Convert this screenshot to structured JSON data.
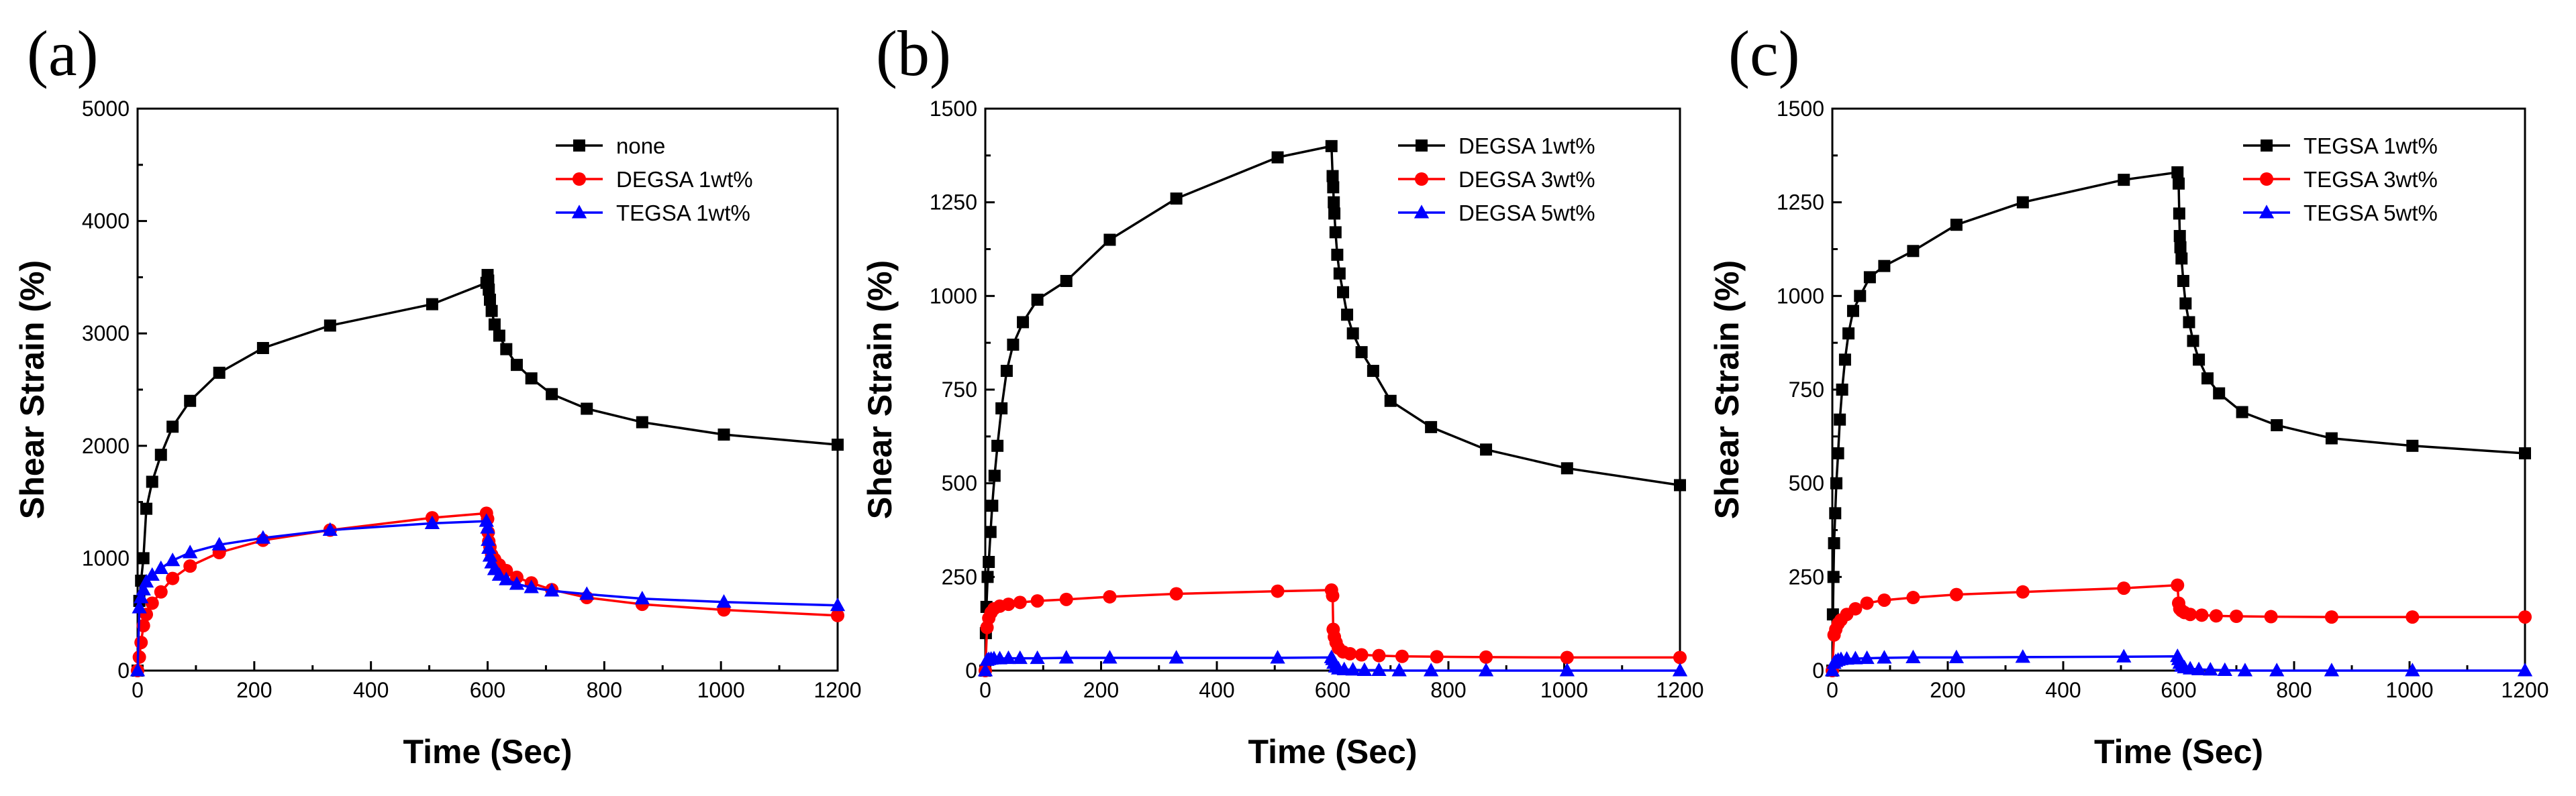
{
  "chart_data": [
    {
      "type": "line",
      "panel_label": "(a)",
      "xlabel": "Time (Sec)",
      "ylabel": "Shear Strain (%)",
      "xlim": [
        0,
        1200
      ],
      "ylim": [
        0,
        5000
      ],
      "xticks": [
        0,
        200,
        400,
        600,
        800,
        1000,
        1200
      ],
      "yticks": [
        0,
        1000,
        2000,
        3000,
        4000,
        5000
      ],
      "legend_position": "top-right",
      "series": [
        {
          "name": "none",
          "color": "#000000",
          "marker": "square",
          "x": [
            0,
            3,
            6,
            10,
            15,
            25,
            40,
            60,
            90,
            140,
            215,
            330,
            505,
            598,
            600,
            601,
            602,
            604,
            607,
            612,
            620,
            632,
            650,
            675,
            710,
            770,
            865,
            1005,
            1200
          ],
          "y": [
            0,
            620,
            800,
            1000,
            1440,
            1680,
            1920,
            2170,
            2400,
            2650,
            2870,
            3070,
            3260,
            3450,
            3520,
            3470,
            3390,
            3300,
            3200,
            3080,
            2980,
            2860,
            2720,
            2600,
            2460,
            2330,
            2210,
            2100,
            2010
          ]
        },
        {
          "name": "DEGSA 1wt%",
          "color": "#ff0000",
          "marker": "circle",
          "x": [
            0,
            3,
            6,
            10,
            15,
            25,
            40,
            60,
            90,
            140,
            215,
            330,
            505,
            598,
            600,
            601,
            602,
            604,
            607,
            612,
            620,
            632,
            650,
            675,
            710,
            770,
            865,
            1005,
            1200
          ],
          "y": [
            0,
            120,
            250,
            400,
            500,
            600,
            700,
            820,
            930,
            1050,
            1160,
            1250,
            1360,
            1400,
            1350,
            1230,
            1150,
            1100,
            1030,
            990,
            940,
            890,
            830,
            780,
            720,
            650,
            590,
            540,
            490
          ]
        },
        {
          "name": "TEGSA 1wt%",
          "color": "#0000ff",
          "marker": "triangle",
          "x": [
            0,
            3,
            6,
            10,
            15,
            25,
            40,
            60,
            90,
            140,
            215,
            330,
            505,
            598,
            600,
            601,
            602,
            604,
            607,
            612,
            620,
            632,
            650,
            675,
            710,
            770,
            865,
            1005,
            1200
          ],
          "y": [
            0,
            560,
            650,
            720,
            790,
            850,
            910,
            980,
            1050,
            1120,
            1180,
            1250,
            1310,
            1330,
            1270,
            1160,
            1090,
            1020,
            960,
            900,
            850,
            810,
            770,
            740,
            710,
            680,
            640,
            610,
            580
          ]
        }
      ]
    },
    {
      "type": "line",
      "panel_label": "(b)",
      "xlabel": "Time (Sec)",
      "ylabel": "Shear Strain (%)",
      "xlim": [
        0,
        1200
      ],
      "ylim": [
        0,
        1500
      ],
      "xticks": [
        0,
        200,
        400,
        600,
        800,
        1000,
        1200
      ],
      "yticks": [
        0,
        250,
        500,
        750,
        1000,
        1250,
        1500
      ],
      "legend_position": "top-right",
      "series": [
        {
          "name": "DEGSA 1wt%",
          "color": "#000000",
          "marker": "square",
          "x": [
            0,
            1,
            2,
            4,
            6,
            9,
            12,
            16,
            21,
            28,
            37,
            48,
            65,
            90,
            140,
            215,
            330,
            505,
            598,
            600,
            601,
            602,
            603,
            605,
            608,
            612,
            618,
            625,
            635,
            650,
            670,
            700,
            770,
            865,
            1005,
            1200
          ],
          "y": [
            0,
            100,
            170,
            250,
            290,
            370,
            440,
            520,
            600,
            700,
            800,
            870,
            930,
            990,
            1040,
            1150,
            1260,
            1370,
            1400,
            1320,
            1290,
            1250,
            1220,
            1170,
            1110,
            1060,
            1010,
            950,
            900,
            850,
            800,
            720,
            650,
            590,
            540,
            495
          ]
        },
        {
          "name": "DEGSA 3wt%",
          "color": "#ff0000",
          "marker": "circle",
          "x": [
            0,
            3,
            6,
            10,
            15,
            25,
            40,
            60,
            90,
            140,
            215,
            330,
            505,
            598,
            600,
            601,
            603,
            606,
            610,
            618,
            630,
            650,
            680,
            720,
            780,
            865,
            1005,
            1200
          ],
          "y": [
            0,
            115,
            140,
            155,
            165,
            172,
            177,
            182,
            186,
            190,
            197,
            205,
            212,
            215,
            200,
            110,
            90,
            75,
            60,
            50,
            45,
            42,
            40,
            38,
            37,
            36,
            35,
            35
          ]
        },
        {
          "name": "DEGSA 5wt%",
          "color": "#0000ff",
          "marker": "triangle",
          "x": [
            0,
            3,
            6,
            10,
            15,
            25,
            40,
            60,
            90,
            140,
            215,
            330,
            505,
            598,
            600,
            602,
            605,
            610,
            620,
            635,
            655,
            680,
            715,
            770,
            865,
            1005,
            1200
          ],
          "y": [
            0,
            28,
            30,
            31,
            32,
            32,
            33,
            33,
            33,
            34,
            34,
            34,
            34,
            35,
            30,
            20,
            10,
            5,
            3,
            2,
            1,
            1,
            0,
            0,
            0,
            0,
            0
          ]
        }
      ]
    },
    {
      "type": "line",
      "panel_label": "(c)",
      "xlabel": "Time (Sec)",
      "ylabel": "Shear Strain (%)",
      "xlim": [
        0,
        1200
      ],
      "ylim": [
        0,
        1500
      ],
      "xticks": [
        0,
        200,
        400,
        600,
        800,
        1000,
        1200
      ],
      "yticks": [
        0,
        250,
        500,
        750,
        1000,
        1250,
        1500
      ],
      "legend_position": "top-right",
      "series": [
        {
          "name": "TEGSA 1wt%",
          "color": "#000000",
          "marker": "square",
          "x": [
            0,
            1,
            2,
            3,
            5,
            7,
            10,
            13,
            17,
            22,
            28,
            36,
            48,
            65,
            90,
            140,
            215,
            330,
            505,
            598,
            600,
            601,
            602,
            603,
            605,
            608,
            612,
            618,
            625,
            635,
            650,
            670,
            710,
            770,
            865,
            1005,
            1200
          ],
          "y": [
            0,
            150,
            250,
            340,
            420,
            500,
            580,
            670,
            750,
            830,
            900,
            960,
            1000,
            1050,
            1080,
            1120,
            1190,
            1250,
            1310,
            1330,
            1300,
            1220,
            1160,
            1130,
            1100,
            1040,
            980,
            930,
            880,
            830,
            780,
            740,
            690,
            655,
            620,
            600,
            580
          ]
        },
        {
          "name": "TEGSA 3wt%",
          "color": "#ff0000",
          "marker": "circle",
          "x": [
            0,
            3,
            6,
            10,
            15,
            25,
            40,
            60,
            90,
            140,
            215,
            330,
            505,
            598,
            600,
            602,
            605,
            610,
            620,
            640,
            665,
            700,
            760,
            865,
            1005,
            1200
          ],
          "y": [
            0,
            95,
            110,
            125,
            135,
            150,
            165,
            180,
            188,
            195,
            203,
            210,
            220,
            228,
            180,
            165,
            160,
            155,
            150,
            148,
            146,
            145,
            144,
            143,
            143,
            143
          ]
        },
        {
          "name": "TEGSA 5wt%",
          "color": "#0000ff",
          "marker": "triangle",
          "x": [
            0,
            3,
            6,
            10,
            15,
            25,
            40,
            60,
            90,
            140,
            215,
            330,
            505,
            598,
            600,
            602,
            605,
            610,
            620,
            635,
            655,
            680,
            715,
            770,
            865,
            1005,
            1200
          ],
          "y": [
            0,
            20,
            25,
            28,
            30,
            31,
            32,
            33,
            34,
            35,
            35,
            36,
            37,
            38,
            30,
            20,
            12,
            8,
            5,
            3,
            2,
            1,
            0,
            0,
            0,
            0,
            0
          ]
        }
      ]
    }
  ]
}
